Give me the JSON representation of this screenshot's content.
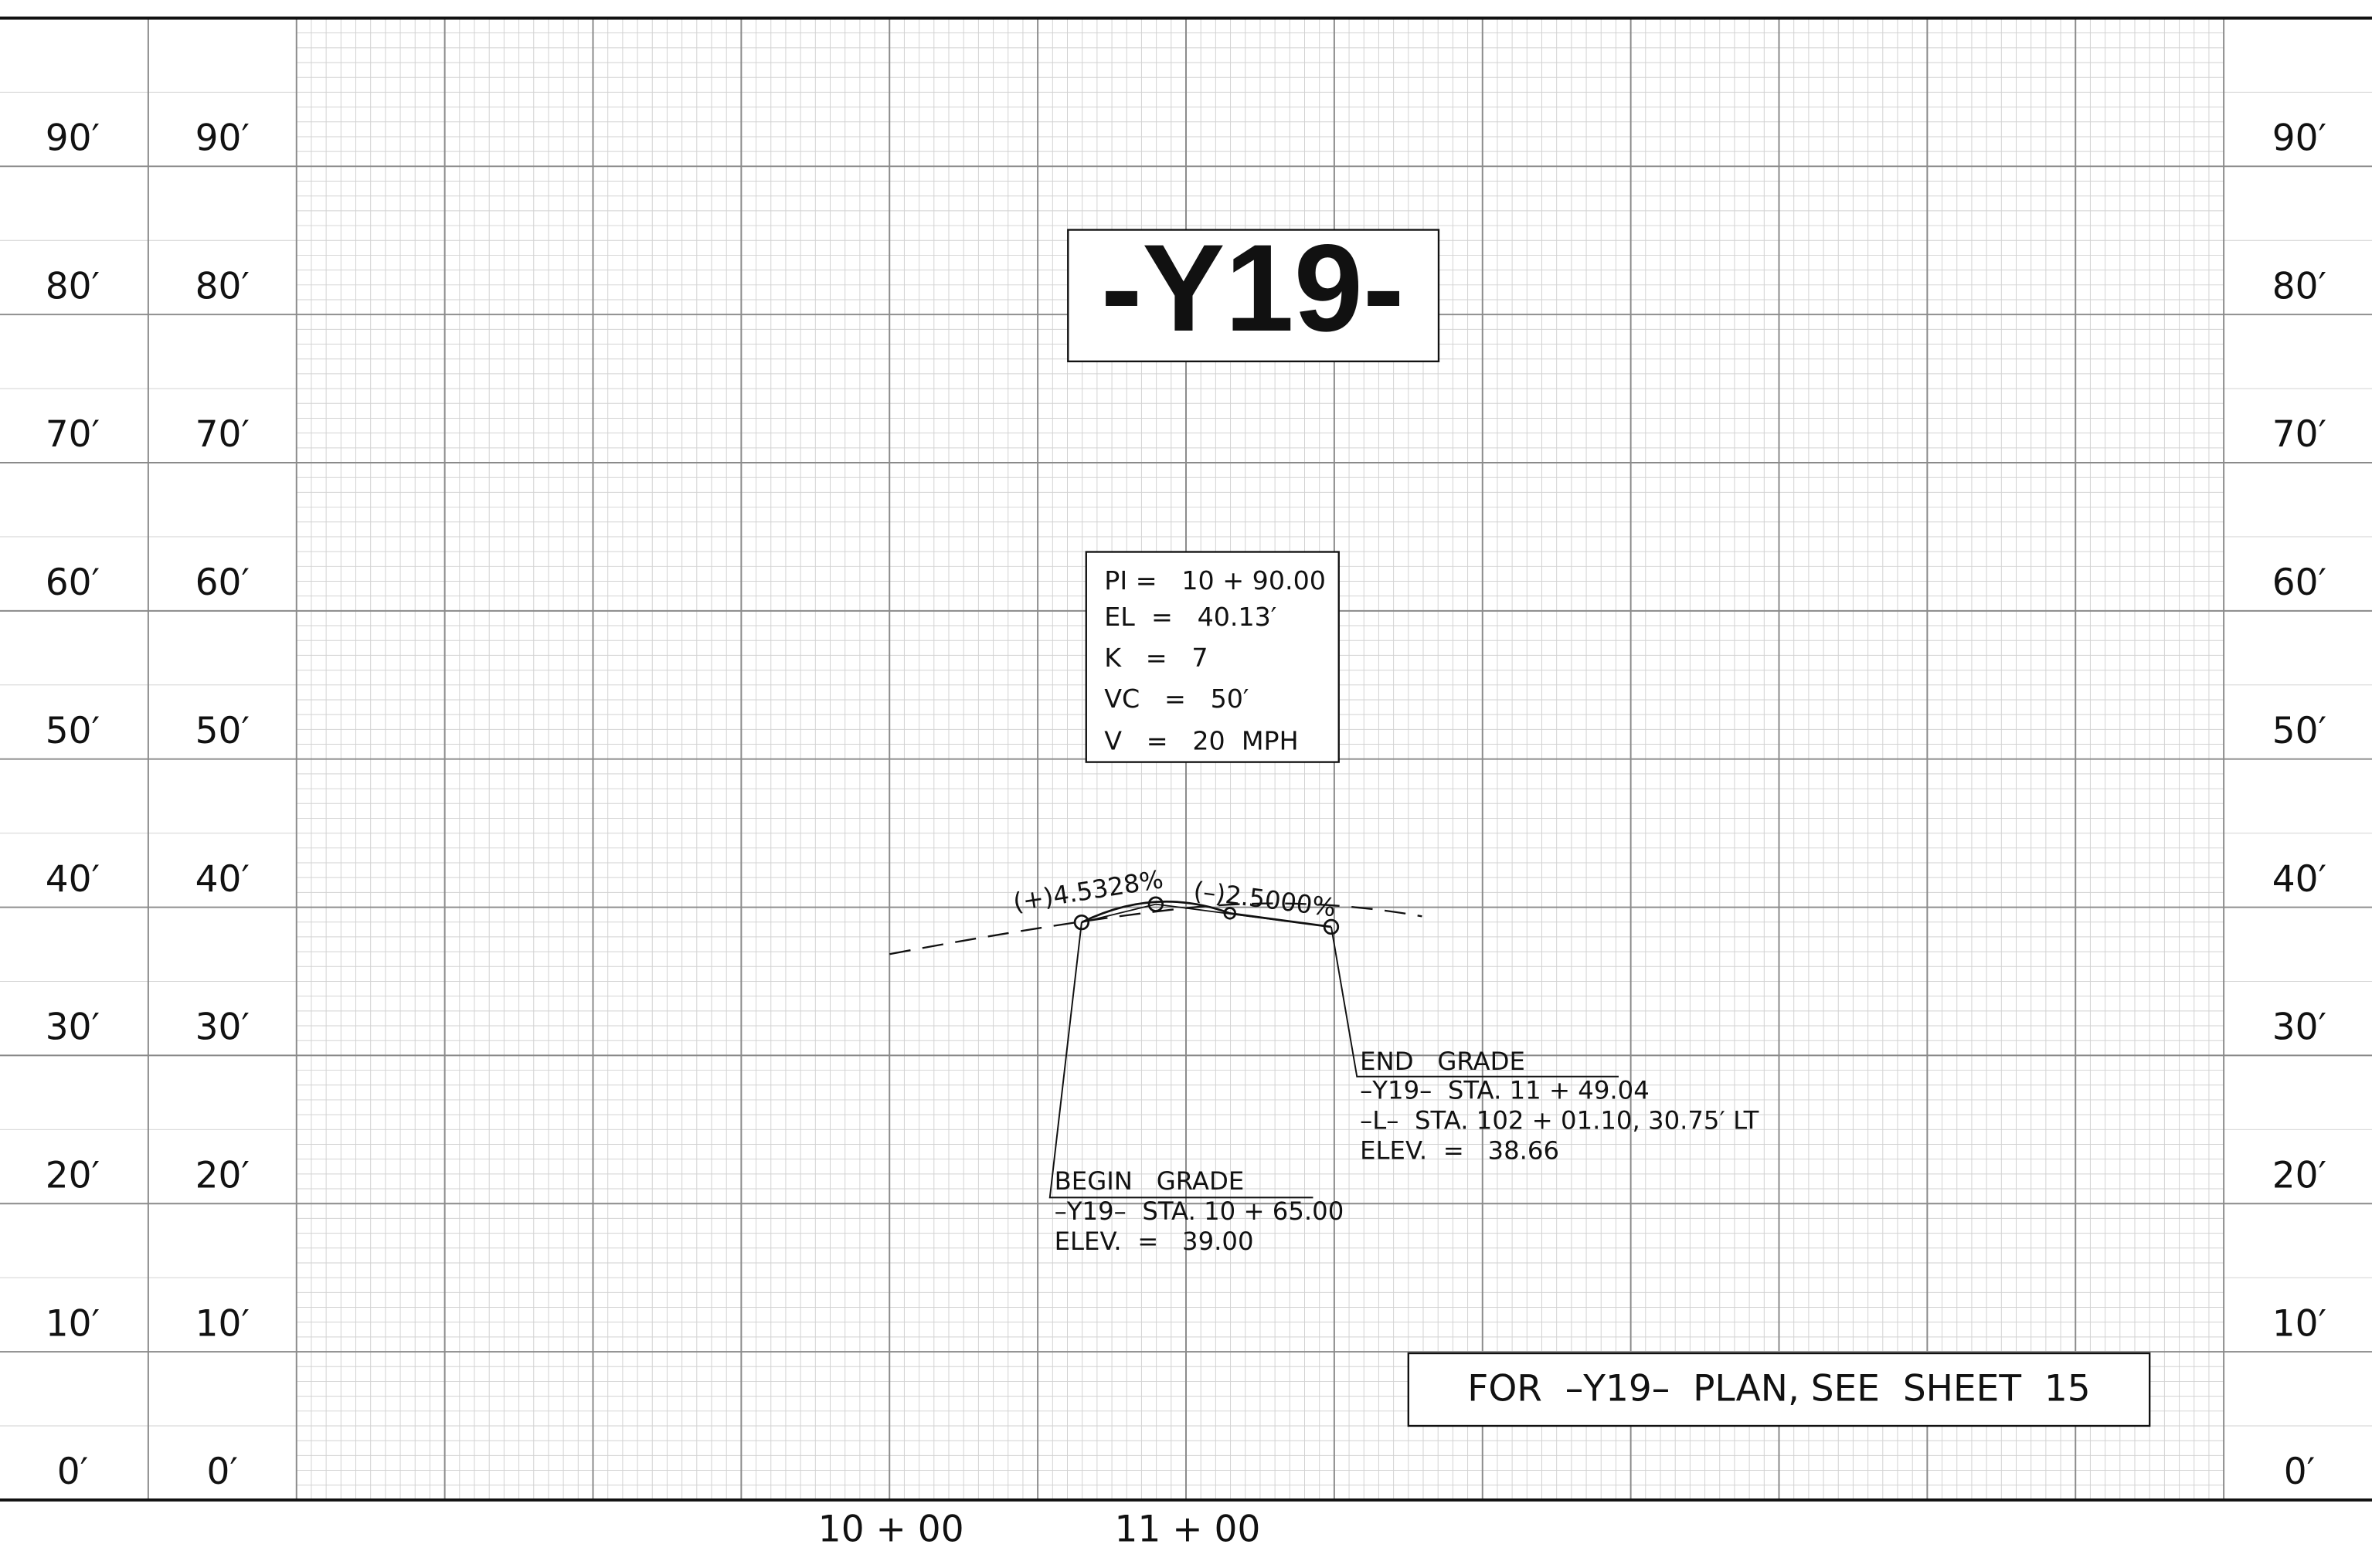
{
  "title": "-Y19-",
  "elevation_labels": [
    "0′",
    "10′",
    "20′",
    "30′",
    "40′",
    "50′",
    "60′",
    "70′",
    "80′",
    "90′"
  ],
  "station_labels": [
    "10 + 00",
    "11 + 00"
  ],
  "curve_data": [
    "PI =   10 + 90.00",
    "EL  =   40.13′",
    "K   =   7",
    "VC   =   50′",
    "V   =   20  MPH"
  ],
  "grades": [
    "(+)4.5328%",
    "(–)2.5000%"
  ],
  "begin_grade": {
    "heading": "BEGIN   GRADE",
    "lines": [
      "–Y19–  STA. 10 + 65.00",
      "ELEV.  =   39.00"
    ]
  },
  "end_grade": {
    "heading": "END   GRADE",
    "lines": [
      "–Y19–  STA. 11 + 49.04",
      "–L–  STA. 102 + 01.10, 30.75′ LT",
      "ELEV.  =   38.66"
    ]
  },
  "note": "FOR  –Y19–  PLAN, SEE  SHEET  15"
}
